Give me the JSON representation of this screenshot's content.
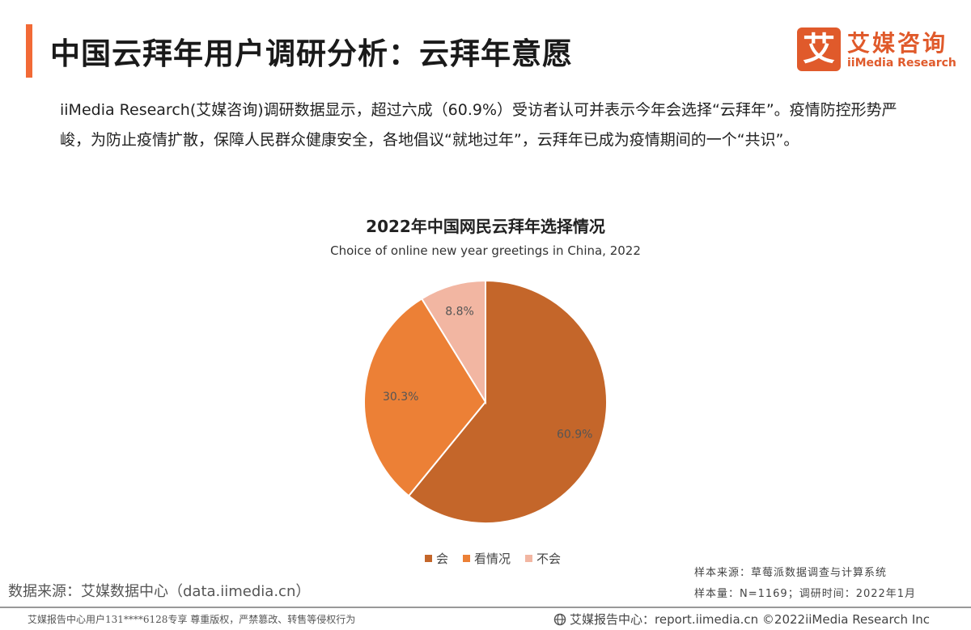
{
  "header": {
    "title": "中国云拜年用户调研分析：云拜年意愿",
    "accent_color": "#f26a36"
  },
  "logo": {
    "icon_char": "艾",
    "name_cn": "艾媒咨询",
    "name_en": "iiMedia Research",
    "color": "#e05a2b"
  },
  "summary": {
    "text": "iiMedia Research(艾媒咨询)调研数据显示，超过六成（60.9%）受访者认可并表示今年会选择“云拜年”。疫情防控形势严峻，为防止疫情扩散，保障人民群众健康安全，各地倡议“就地过年”，云拜年已成为疫情期间的一个“共识”。"
  },
  "chart_data": {
    "type": "pie",
    "title": "2022年中国网民云拜年选择情况",
    "subtitle": "Choice of online new year greetings in China, 2022",
    "categories": [
      "会",
      "看情况",
      "不会"
    ],
    "values": [
      60.9,
      30.3,
      8.8
    ],
    "labels": [
      "60.9%",
      "30.3%",
      "8.8%"
    ],
    "colors": [
      "#c4662a",
      "#ec8036",
      "#f2b6a2"
    ],
    "start_angle": "12 o'clock, clockwise",
    "legend_position": "bottom"
  },
  "sample_info": {
    "source": "样本来源：草莓派数据调查与计算系统",
    "size": "样本量：N=1169；调研时间：2022年1月"
  },
  "data_source": "数据来源：艾媒数据中心（data.iimedia.cn）",
  "footer": {
    "left": "艾媒报告中心用户131****6128专享 尊重版权，严禁篡改、转售等侵权行为",
    "right": "艾媒报告中心：report.iimedia.cn   ©2022iiMedia Research Inc"
  }
}
